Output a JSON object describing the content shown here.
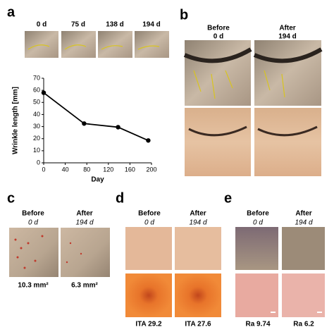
{
  "chart_data": {
    "type": "line",
    "xlabel": "Day",
    "ylabel": "Wrinkle length [mm]",
    "x": [
      0,
      75,
      138,
      194
    ],
    "values": [
      58,
      32.5,
      29.5,
      18.5
    ],
    "color": "#000000",
    "xlim": [
      0,
      200
    ],
    "xticks": [
      0,
      40,
      80,
      120,
      160,
      200
    ],
    "ylim": [
      0,
      70
    ],
    "yticks": [
      0,
      10,
      20,
      30,
      40,
      50,
      60,
      70
    ],
    "grid": false
  },
  "panels": {
    "a": {
      "label": "a",
      "thumbs": [
        "0 d",
        "75 d",
        "138 d",
        "194 d"
      ]
    },
    "b": {
      "label": "b",
      "before": "Before",
      "before_day": "0 d",
      "after": "After",
      "after_day": "194 d"
    },
    "c": {
      "label": "c",
      "before": "Before",
      "before_day": "0 d",
      "after": "After",
      "after_day": "194 d",
      "before_value": "10.3 mm²",
      "after_value": "6.3 mm²"
    },
    "d": {
      "label": "d",
      "before": "Before",
      "before_day": "0 d",
      "after": "After",
      "after_day": "194 d",
      "before_value": "ITA 29.2",
      "after_value": "ITA 27.6"
    },
    "e": {
      "label": "e",
      "before": "Before",
      "before_day": "0 d",
      "after": "After",
      "after_day": "194 d",
      "before_value": "Ra 9.74",
      "after_value": "Ra 6.2"
    }
  }
}
